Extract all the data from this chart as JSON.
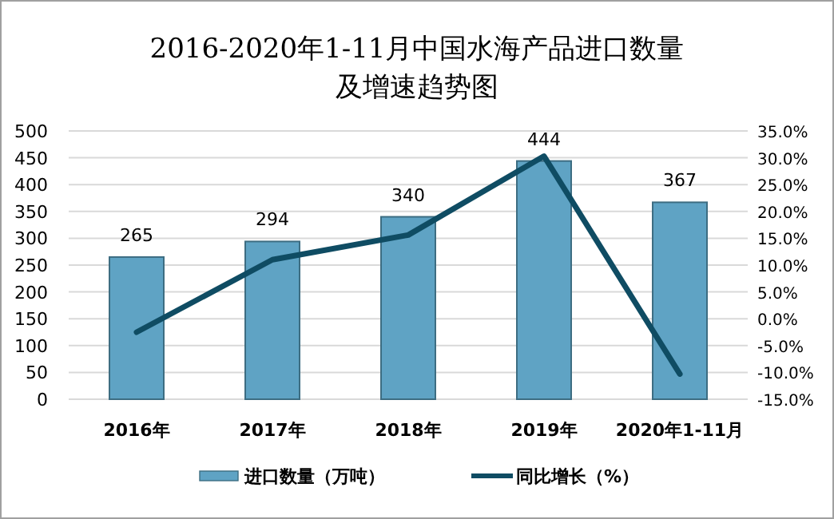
{
  "chart_data": {
    "type": "bar",
    "title": "2016-2020年1-11月中国水海产品进口数量及增速趋势图",
    "categories": [
      "2016年",
      "2017年",
      "2018年",
      "2019年",
      "2020年1-11月"
    ],
    "series": [
      {
        "name": "进口数量（万吨）",
        "color": "#5fa3c4",
        "values": [
          265,
          294,
          340,
          444,
          367
        ],
        "value_labels": [
          "265",
          "294",
          "340",
          "444",
          "367"
        ]
      },
      {
        "name": "同比增长（%）",
        "type": "line",
        "axis": "y2",
        "color": "#0f4c63",
        "values": [
          -2.5,
          11.0,
          15.6,
          30.3,
          -10.3
        ]
      }
    ],
    "ylim": [
      0,
      500
    ],
    "yticks": [
      0,
      50,
      100,
      150,
      200,
      250,
      300,
      350,
      400,
      450,
      500
    ],
    "y2lim": [
      -15,
      35
    ],
    "y2ticks": [
      {
        "value": -15,
        "label": "-15.0%"
      },
      {
        "value": -10,
        "label": "-10.0%"
      },
      {
        "value": -5,
        "label": "-5.0%"
      },
      {
        "value": 0,
        "label": "0.0%"
      },
      {
        "value": 5,
        "label": "5.0%"
      },
      {
        "value": 10,
        "label": "10.0%"
      },
      {
        "value": 15,
        "label": "15.0%"
      },
      {
        "value": 20,
        "label": "20.0%"
      },
      {
        "value": 25,
        "label": "25.0%"
      },
      {
        "value": 30,
        "label": "30.0%"
      },
      {
        "value": 35,
        "label": "35.0%"
      }
    ],
    "grid": "y",
    "legend": "bottom"
  }
}
